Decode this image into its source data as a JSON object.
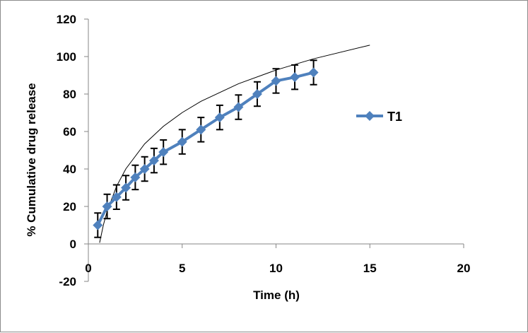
{
  "chart_data": {
    "type": "line",
    "xlabel": "Time (h)",
    "ylabel": "% Cumulative drug release",
    "xlim": [
      0,
      20
    ],
    "ylim": [
      -20,
      120
    ],
    "x_ticks": [
      "0",
      "5",
      "10",
      "15",
      "20"
    ],
    "y_ticks": [
      "-20",
      "0",
      "20",
      "40",
      "60",
      "80",
      "100",
      "120"
    ],
    "grid": false,
    "legend_position": "right",
    "series": [
      {
        "name": "T1",
        "color": "#4f81bd",
        "marker": "diamond",
        "x": [
          0.5,
          1,
          1.5,
          2,
          2.5,
          3,
          3.5,
          4,
          5,
          6,
          7,
          8,
          9,
          10,
          11,
          12
        ],
        "y": [
          10,
          20,
          25,
          30,
          35.5,
          40,
          44.5,
          49,
          54.5,
          61,
          67.5,
          73,
          80,
          87,
          89,
          91.5
        ],
        "error": [
          6.5,
          6.5,
          6.5,
          6.5,
          6.5,
          6.5,
          6.5,
          6.5,
          6.5,
          6.5,
          6.5,
          6.5,
          6.5,
          6.5,
          6.5,
          6.5
        ]
      }
    ],
    "trendline": {
      "type": "logarithmic",
      "color": "#000000",
      "x": [
        0.6,
        0.8,
        1,
        1.5,
        2,
        3,
        4,
        5,
        6,
        8,
        10,
        12,
        15
      ],
      "y": [
        0.6,
        10.1,
        17.4,
        30.7,
        40.1,
        53.4,
        62.8,
        70.1,
        76.1,
        85.5,
        92.8,
        98.8,
        106.1
      ]
    }
  }
}
